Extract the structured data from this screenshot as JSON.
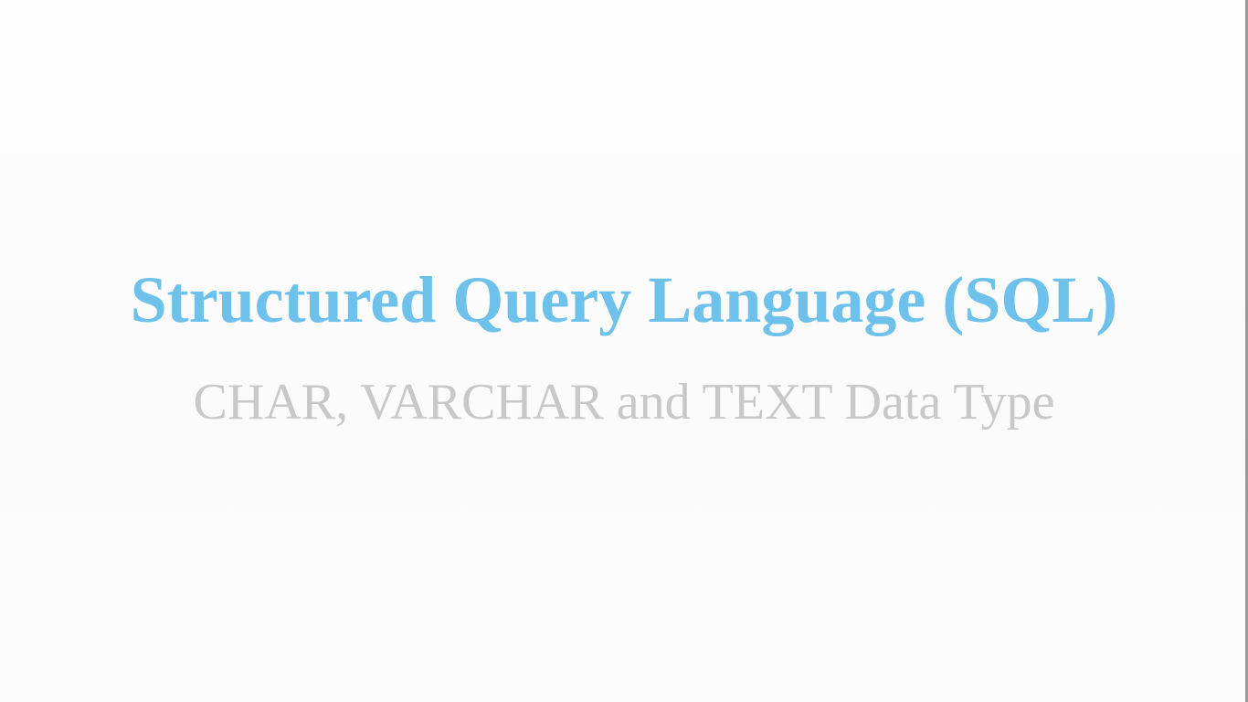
{
  "slide": {
    "title": "Structured Query Language (SQL)",
    "subtitle": "CHAR, VARCHAR and TEXT Data Type"
  },
  "colors": {
    "title": "#6ec1ea",
    "subtitle": "#c8c8c8",
    "background": "#fdfdfd"
  }
}
